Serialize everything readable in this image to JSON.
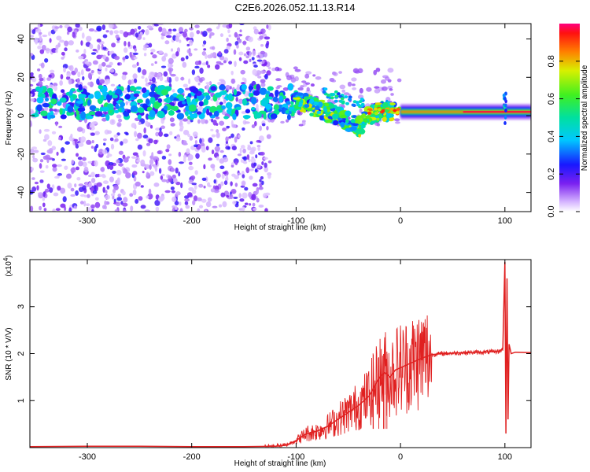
{
  "title": "C2E6.2026.052.11.13.R14",
  "chart_data": [
    {
      "type": "heatmap",
      "title": "C2E6.2026.052.11.13.R14",
      "xlabel": "Height of straight line (km)",
      "ylabel": "Frequency (Hz)",
      "xlim": [
        -355,
        125
      ],
      "ylim": [
        -50,
        48
      ],
      "x_ticks": [
        -300,
        -200,
        -100,
        0,
        100
      ],
      "x_tick_labels": [
        "-300",
        "-200",
        "-100",
        "0",
        "100"
      ],
      "y_ticks": [
        -40,
        -20,
        0,
        20,
        40
      ],
      "y_tick_labels": [
        "-40",
        "-20",
        "0",
        "20",
        "40"
      ],
      "colorbar": {
        "label": "Normalized spectral amplitude",
        "range": [
          0,
          1
        ],
        "ticks": [
          0.0,
          0.2,
          0.4,
          0.6,
          0.8
        ],
        "tick_labels": [
          "0.0",
          "0.2",
          "0.4",
          "0.6",
          "0.8"
        ]
      },
      "features": [
        {
          "name": "noise-scatter",
          "x_range": [
            -355,
            -125
          ],
          "freq_range": [
            -50,
            48
          ],
          "amplitude": 0.15
        },
        {
          "name": "noisy-band",
          "x_range": [
            -350,
            -100
          ],
          "freq_center": 7,
          "freq_width": 10,
          "amplitude": 0.4
        },
        {
          "name": "descending-ridge",
          "points": [
            [
              -100,
              8
            ],
            [
              -80,
              4
            ],
            [
              -60,
              0
            ],
            [
              -40,
              -6
            ],
            [
              -30,
              0
            ],
            [
              -20,
              2
            ],
            [
              -5,
              3
            ]
          ],
          "amplitude": 0.6
        },
        {
          "name": "stable-line",
          "x_range": [
            0,
            125
          ],
          "freq_center": 2,
          "amplitude": 0.85
        },
        {
          "name": "burst",
          "x": 100,
          "freq_range": [
            -5,
            12
          ],
          "amplitude": 0.5
        }
      ]
    },
    {
      "type": "line",
      "xlabel": "Height of straight line (km)",
      "ylabel": "SNR (10 * V/V)",
      "y_multiplier": "(x10",
      "y_multiplier_exp": "4",
      "y_multiplier_close": ")",
      "xlim": [
        -355,
        125
      ],
      "ylim": [
        0,
        4
      ],
      "x_ticks": [
        -300,
        -200,
        -100,
        0,
        100
      ],
      "x_tick_labels": [
        "-300",
        "-200",
        "-100",
        "0",
        "100"
      ],
      "y_ticks": [
        1,
        2,
        3
      ],
      "y_tick_labels": [
        "1",
        "2",
        "3"
      ],
      "series": [
        {
          "name": "SNR",
          "color": "#e02020",
          "x": [
            -355,
            -300,
            -250,
            -200,
            -150,
            -120,
            -110,
            -100,
            -90,
            -80,
            -70,
            -60,
            -50,
            -40,
            -30,
            -25,
            -20,
            -15,
            -10,
            -5,
            0,
            10,
            20,
            30,
            40,
            60,
            80,
            95,
            98,
            100,
            101,
            102,
            103,
            104,
            106,
            110,
            125
          ],
          "values": [
            0.02,
            0.03,
            0.03,
            0.02,
            0.02,
            0.03,
            0.05,
            0.15,
            0.3,
            0.35,
            0.45,
            0.6,
            0.75,
            0.9,
            1.1,
            1.3,
            1.5,
            1.6,
            1.5,
            1.65,
            1.7,
            1.8,
            1.9,
            1.98,
            2.0,
            2.02,
            2.03,
            2.05,
            2.1,
            3.95,
            0.3,
            3.6,
            0.6,
            2.2,
            2.0,
            2.03,
            2.02
          ]
        }
      ]
    }
  ]
}
